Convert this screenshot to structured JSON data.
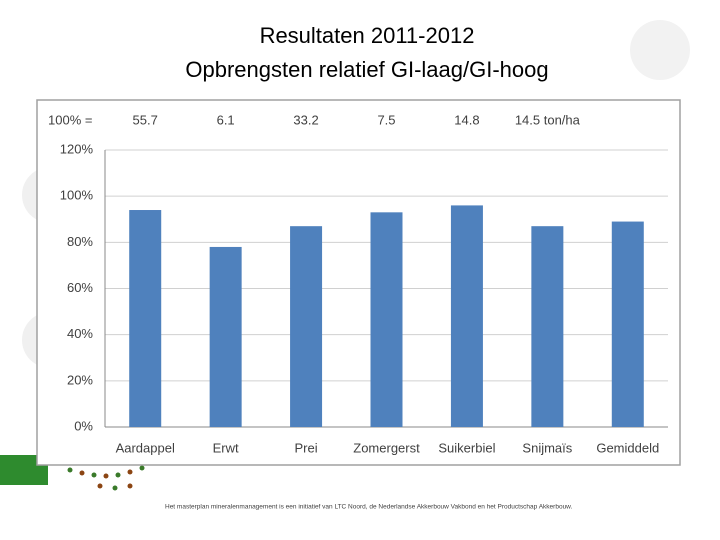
{
  "chart_data": {
    "type": "bar",
    "title": "Resultaten 2011-2012",
    "subtitle": "Opbrengsten relatief GI-laag/GI-hoog",
    "baseline_label": "100% =",
    "baseline_values": [
      "55.7",
      "6.1",
      "33.2",
      "7.5",
      "14.8",
      "14.5 ton/ha"
    ],
    "categories": [
      "Aardappel",
      "Erwt",
      "Prei",
      "Zomergerst",
      "Suikerbiel",
      "Snijmaïs",
      "Gemiddeld"
    ],
    "values": [
      94,
      78,
      87,
      93,
      96,
      87,
      89
    ],
    "color": "#4f81bd",
    "ylim": [
      0,
      120
    ],
    "yticks": [
      {
        "value": 0,
        "label": "0%"
      },
      {
        "value": 20,
        "label": "20%"
      },
      {
        "value": 40,
        "label": "40%"
      },
      {
        "value": 60,
        "label": "60%"
      },
      {
        "value": 80,
        "label": "80%"
      },
      {
        "value": 100,
        "label": "100%"
      },
      {
        "value": 120,
        "label": "120%"
      }
    ],
    "grid": true
  },
  "footer": "Het masterplan mineralenmanagement is een initiatief van LTC Noord, de Nederlandse Akkerbouw Vakbond en het Productschap Akkerbouw."
}
